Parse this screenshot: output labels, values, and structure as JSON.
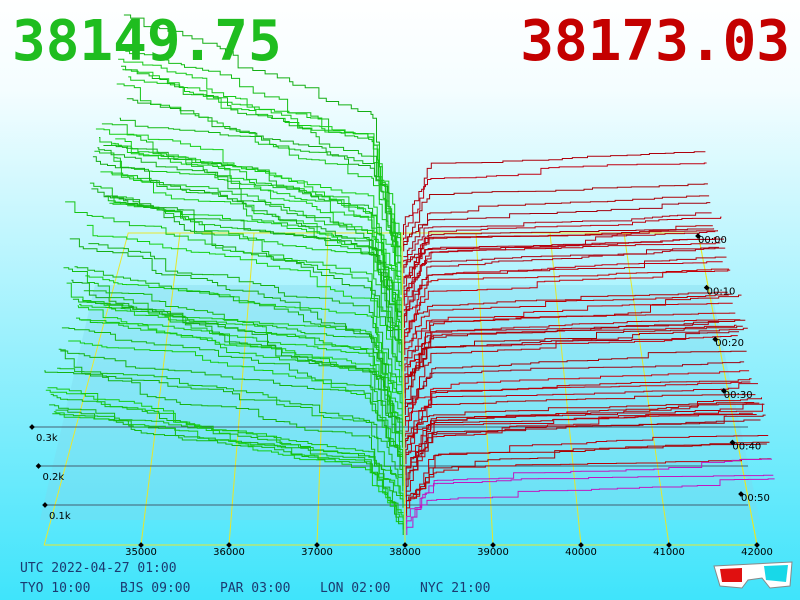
{
  "header": {
    "bid_price": "38149.75",
    "ask_price": "38173.03"
  },
  "price_axis": {
    "labels": [
      "35000",
      "36000",
      "37000",
      "38000",
      "39000",
      "40000",
      "41000",
      "42000"
    ]
  },
  "depth_axis": {
    "labels": [
      "0.3k",
      "0.2k",
      "0.1k"
    ]
  },
  "time_axis": {
    "labels": [
      "00:00",
      "00:10",
      "00:20",
      "00:30",
      "00:40",
      "00:50"
    ]
  },
  "footer": {
    "utc": "UTC 2022-04-27 01:00",
    "clocks": [
      "TYO 10:00",
      "BJS 09:00",
      "PAR 03:00",
      "LON 02:00",
      "NYC 21:00"
    ]
  }
}
